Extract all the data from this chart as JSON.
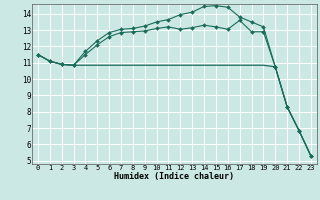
{
  "xlabel": "Humidex (Indice chaleur)",
  "bg_color": "#cce8e4",
  "grid_color": "#ffffff",
  "line_color": "#1a6b5a",
  "xlim": [
    -0.5,
    23.5
  ],
  "ylim": [
    4.8,
    14.6
  ],
  "yticks": [
    5,
    6,
    7,
    8,
    9,
    10,
    11,
    12,
    13,
    14
  ],
  "xticks": [
    0,
    1,
    2,
    3,
    4,
    5,
    6,
    7,
    8,
    9,
    10,
    11,
    12,
    13,
    14,
    15,
    16,
    17,
    18,
    19,
    20,
    21,
    22,
    23
  ],
  "line_upper_x": [
    0,
    1,
    2,
    3,
    4,
    5,
    6,
    7,
    8,
    9,
    10,
    11,
    12,
    13,
    14,
    15,
    16,
    17,
    18,
    19,
    20,
    21,
    22,
    23
  ],
  "line_upper_y": [
    11.5,
    11.1,
    10.9,
    10.85,
    11.7,
    12.35,
    12.85,
    13.05,
    13.1,
    13.25,
    13.5,
    13.65,
    13.95,
    14.1,
    14.45,
    14.5,
    14.4,
    13.8,
    13.5,
    13.2,
    10.75,
    8.3,
    6.85,
    5.3
  ],
  "line_mid_x": [
    0,
    1,
    2,
    3,
    4,
    5,
    6,
    7,
    8,
    9,
    10,
    11,
    12,
    13,
    14,
    15,
    16,
    17,
    18,
    19,
    20,
    21,
    22,
    23
  ],
  "line_mid_y": [
    11.5,
    11.1,
    10.9,
    10.85,
    11.5,
    12.1,
    12.6,
    12.85,
    12.9,
    12.95,
    13.1,
    13.2,
    13.05,
    13.15,
    13.3,
    13.2,
    13.05,
    13.6,
    12.9,
    12.9,
    10.75,
    8.3,
    6.85,
    5.3
  ],
  "line_low_x": [
    0,
    1,
    2,
    3,
    4,
    5,
    6,
    7,
    8,
    9,
    10,
    11,
    12,
    13,
    14,
    15,
    16,
    17,
    18,
    19,
    20,
    21,
    22,
    23
  ],
  "line_low_y": [
    11.5,
    11.1,
    10.9,
    10.85,
    10.85,
    10.85,
    10.85,
    10.85,
    10.85,
    10.85,
    10.85,
    10.85,
    10.85,
    10.85,
    10.85,
    10.85,
    10.85,
    10.85,
    10.85,
    10.85,
    10.75,
    8.3,
    6.85,
    5.3
  ],
  "marker": "D",
  "marker_size": 2.0
}
